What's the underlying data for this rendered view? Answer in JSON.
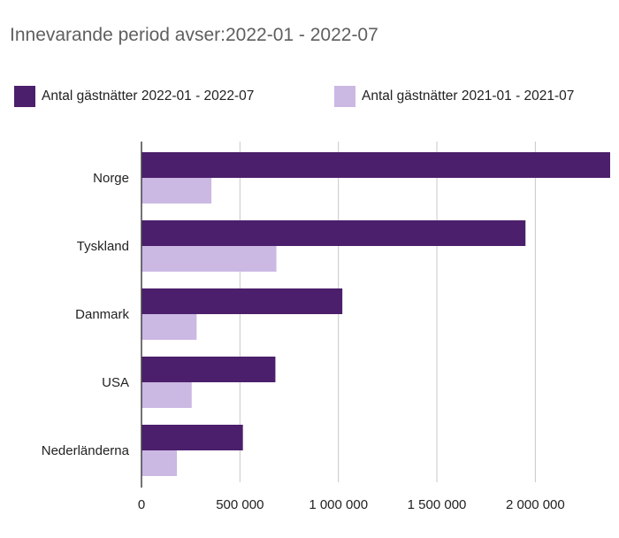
{
  "title": "Innevarande period avser:2022-01 - 2022-07",
  "legend": [
    {
      "label": "Antal gästnätter 2022-01 - 2022-07",
      "color": "#4b1f6b"
    },
    {
      "label": "Antal gästnätter 2021-01 - 2021-07",
      "color": "#cbb8e3"
    }
  ],
  "chart_data": {
    "type": "bar",
    "orientation": "horizontal",
    "categories": [
      "Norge",
      "Tyskland",
      "Danmark",
      "USA",
      "Nederländerna"
    ],
    "series": [
      {
        "name": "Antal gästnätter 2022-01 - 2022-07",
        "color": "#4b1f6b",
        "values": [
          2380000,
          1950000,
          1020000,
          680000,
          515000
        ]
      },
      {
        "name": "Antal gästnätter 2021-01 - 2021-07",
        "color": "#cbb8e3",
        "values": [
          355000,
          685000,
          280000,
          255000,
          180000
        ]
      }
    ],
    "xlim": [
      0,
      2380000
    ],
    "xticks": [
      0,
      500000,
      1000000,
      1500000,
      2000000
    ],
    "xtick_labels": [
      "0",
      "500 000",
      "1 000 000",
      "1 500 000",
      "2 000 000"
    ],
    "grid": true,
    "legend_position": "top"
  }
}
